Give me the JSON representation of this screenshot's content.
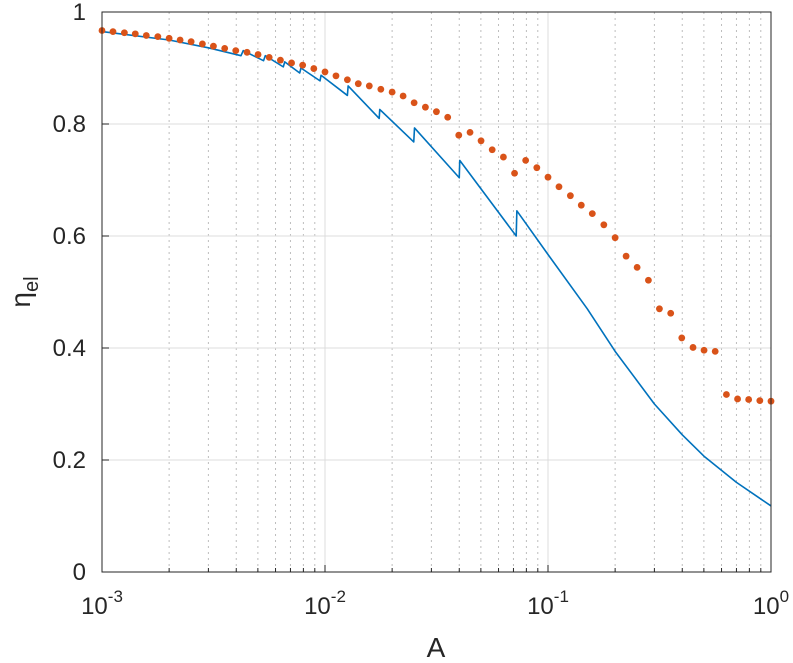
{
  "chart_data": {
    "type": "line",
    "xscale": "log",
    "xlim": [
      0.001,
      1
    ],
    "ylim": [
      0,
      1
    ],
    "grid": true,
    "minor_grid": true,
    "xlabel": "A",
    "ylabel": "η",
    "ylabel_subscript": "el",
    "x_ticks": [
      {
        "value": 0.001,
        "base": "10",
        "exp": "-3"
      },
      {
        "value": 0.01,
        "base": "10",
        "exp": "-2"
      },
      {
        "value": 0.1,
        "base": "10",
        "exp": "-1"
      },
      {
        "value": 1,
        "base": "10",
        "exp": "0"
      }
    ],
    "y_ticks": [
      {
        "value": 0,
        "label": "0"
      },
      {
        "value": 0.2,
        "label": "0.2"
      },
      {
        "value": 0.4,
        "label": "0.4"
      },
      {
        "value": 0.6,
        "label": "0.6"
      },
      {
        "value": 0.8,
        "label": "0.8"
      },
      {
        "value": 1,
        "label": "1"
      }
    ],
    "series": [
      {
        "style": "solid-line",
        "color": "#0072BD",
        "points": [
          [
            0.001,
            0.965
          ],
          [
            0.002,
            0.95
          ],
          [
            0.003,
            0.936
          ],
          [
            0.0042,
            0.922
          ],
          [
            0.0043,
            0.931
          ],
          [
            0.0053,
            0.913
          ],
          [
            0.0054,
            0.922
          ],
          [
            0.0065,
            0.902
          ],
          [
            0.0066,
            0.911
          ],
          [
            0.0077,
            0.891
          ],
          [
            0.0078,
            0.9
          ],
          [
            0.0095,
            0.877
          ],
          [
            0.0096,
            0.887
          ],
          [
            0.0126,
            0.851
          ],
          [
            0.0127,
            0.868
          ],
          [
            0.0175,
            0.81
          ],
          [
            0.0176,
            0.826
          ],
          [
            0.025,
            0.768
          ],
          [
            0.0252,
            0.793
          ],
          [
            0.04,
            0.704
          ],
          [
            0.0402,
            0.735
          ],
          [
            0.072,
            0.6
          ],
          [
            0.0725,
            0.645
          ],
          [
            0.1,
            0.567
          ],
          [
            0.15,
            0.47
          ],
          [
            0.2,
            0.394
          ],
          [
            0.3,
            0.3
          ],
          [
            0.4,
            0.245
          ],
          [
            0.5,
            0.207
          ],
          [
            0.7,
            0.16
          ],
          [
            1.0,
            0.118
          ]
        ]
      },
      {
        "style": "dotted-markers",
        "color": "#D95319",
        "points": [
          [
            0.001,
            0.967
          ],
          [
            0.00112,
            0.965
          ],
          [
            0.00126,
            0.963
          ],
          [
            0.00141,
            0.961
          ],
          [
            0.00158,
            0.958
          ],
          [
            0.00178,
            0.956
          ],
          [
            0.002,
            0.953
          ],
          [
            0.00224,
            0.95
          ],
          [
            0.00251,
            0.947
          ],
          [
            0.00282,
            0.943
          ],
          [
            0.00316,
            0.939
          ],
          [
            0.00355,
            0.935
          ],
          [
            0.00398,
            0.931
          ],
          [
            0.00447,
            0.928
          ],
          [
            0.00501,
            0.924
          ],
          [
            0.00562,
            0.919
          ],
          [
            0.00631,
            0.914
          ],
          [
            0.00708,
            0.909
          ],
          [
            0.00794,
            0.905
          ],
          [
            0.00891,
            0.899
          ],
          [
            0.01,
            0.893
          ],
          [
            0.0112,
            0.886
          ],
          [
            0.0126,
            0.879
          ],
          [
            0.0141,
            0.872
          ],
          [
            0.0158,
            0.868
          ],
          [
            0.0178,
            0.862
          ],
          [
            0.02,
            0.857
          ],
          [
            0.0224,
            0.85
          ],
          [
            0.0251,
            0.838
          ],
          [
            0.0282,
            0.83
          ],
          [
            0.0316,
            0.822
          ],
          [
            0.0355,
            0.812
          ],
          [
            0.0398,
            0.78
          ],
          [
            0.0447,
            0.785
          ],
          [
            0.0501,
            0.77
          ],
          [
            0.0562,
            0.754
          ],
          [
            0.0631,
            0.741
          ],
          [
            0.0708,
            0.712
          ],
          [
            0.0794,
            0.735
          ],
          [
            0.0891,
            0.722
          ],
          [
            0.1,
            0.705
          ],
          [
            0.112,
            0.688
          ],
          [
            0.126,
            0.672
          ],
          [
            0.141,
            0.655
          ],
          [
            0.158,
            0.64
          ],
          [
            0.178,
            0.62
          ],
          [
            0.2,
            0.597
          ],
          [
            0.224,
            0.564
          ],
          [
            0.251,
            0.544
          ],
          [
            0.282,
            0.521
          ],
          [
            0.316,
            0.47
          ],
          [
            0.355,
            0.462
          ],
          [
            0.398,
            0.418
          ],
          [
            0.447,
            0.401
          ],
          [
            0.501,
            0.396
          ],
          [
            0.562,
            0.394
          ],
          [
            0.631,
            0.317
          ],
          [
            0.708,
            0.309
          ],
          [
            0.794,
            0.308
          ],
          [
            0.891,
            0.306
          ],
          [
            1.0,
            0.305
          ]
        ]
      }
    ]
  }
}
